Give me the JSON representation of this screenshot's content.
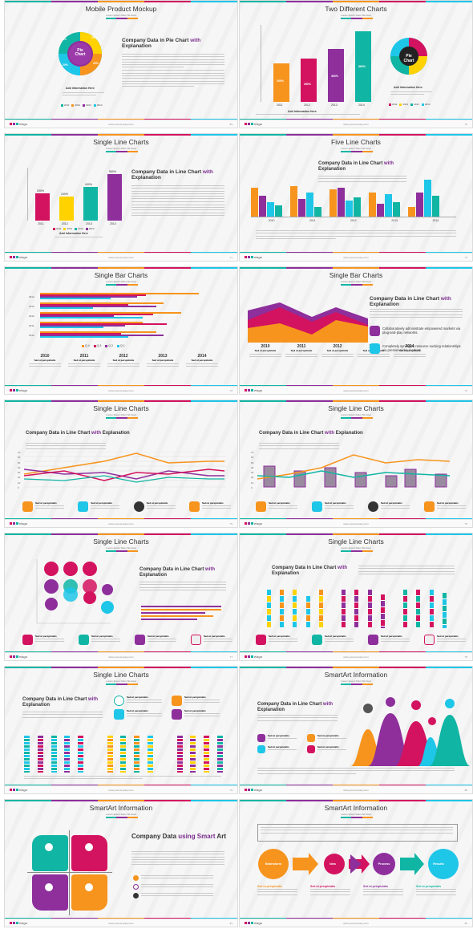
{
  "colors": {
    "teal": "#11b5a4",
    "purple": "#8e2f9c",
    "orange": "#f7941d",
    "magenta": "#d3135f",
    "cyan": "#1ec6e8",
    "yellow": "#ffd200",
    "bg": "#f6f6f6"
  },
  "footer": {
    "logo": "elaga",
    "url": "www.yourcompany.com"
  },
  "slides": [
    {
      "title": "Mobile Product Mockup",
      "subtitle": "Lorem Ipsum Dolor Sit Amet",
      "page": "69",
      "heading_plain": "Company Data in Pie Chart",
      "heading_accent": "with",
      "heading_tail": "Explanation",
      "pie_label": "Pie Chart",
      "pie_pcts": [
        "20%",
        "20%",
        "20%",
        "20%"
      ],
      "caption": "Add Information Here",
      "legend": [
        "2011",
        "2012",
        "2013",
        "2014"
      ]
    },
    {
      "title": "Two Different Charts",
      "subtitle": "Lorem Ipsum Dolor Sit Amet",
      "page": "70",
      "bar_values": [
        "200%",
        "250%",
        "400%",
        "560%"
      ],
      "bar_years": [
        "2011",
        "2012",
        "2013",
        "2014"
      ],
      "pie_label": "Pie Chart",
      "caption": "Add Information Here",
      "legend": [
        "2011",
        "2012",
        "2013",
        "2014"
      ]
    },
    {
      "title": "Single Line Charts",
      "subtitle": "Lorem Ipsum Dolor Sit Amet",
      "page": "71",
      "heading_plain": "Company Data in Line Chart",
      "heading_accent": "with",
      "heading_tail": "Explanation",
      "bar_values": [
        "200%",
        "240%",
        "400%",
        "560%"
      ],
      "bar_years": [
        "2011",
        "2012",
        "2013",
        "2014"
      ],
      "caption": "Add Information Here",
      "legend": [
        "2011",
        "2012",
        "2013",
        "2014"
      ]
    },
    {
      "title": "Five Line Charts",
      "subtitle": "Lorem Ipsum Dolor Sit Amet",
      "page": "72",
      "heading_plain": "Company Data in Line Chart",
      "heading_accent": "with",
      "heading_tail": "Explanation",
      "years": [
        "2010",
        "2011",
        "2012",
        "2013",
        "2014"
      ]
    },
    {
      "title": "Single Bar Charts",
      "subtitle": "Lorem Ipsum Dolor Sit Amet",
      "page": "73",
      "years": [
        "2014",
        "2013",
        "2012",
        "2011",
        "2010"
      ],
      "legend": [
        "Q.4",
        "Q.3",
        "Q.2",
        "Q.1"
      ],
      "cols": [
        "2010",
        "2011",
        "2012",
        "2013",
        "2014"
      ],
      "col_label": "Sed ut perspiciatis"
    },
    {
      "title": "Single Bar Charts",
      "subtitle": "Lorem Ipsum Dolor Sit Amet",
      "page": "74",
      "heading_plain": "Company Data in Line Chart",
      "heading_accent": "with",
      "heading_tail": "Explanation",
      "years": [
        "2010",
        "2011",
        "2012",
        "2013",
        "2014"
      ],
      "col_label": "Sed ut perspiciatis",
      "bullets": [
        "Collaboratively administrate empowered markets via plug-and-play networks.",
        "Completely synergize resource sucking relationships via premier niche markets."
      ]
    },
    {
      "title": "Single Line Charts",
      "subtitle": "Lorem Ipsum Dolor Sit Amet",
      "page": "75",
      "heading_plain": "Company Data in Line Chart",
      "heading_accent": "with",
      "heading_tail": "Explanation",
      "yticks": [
        "70",
        "60",
        "50",
        "40",
        "30",
        "20",
        "10",
        "0"
      ],
      "col_label": "Sed ut perspiciatis"
    },
    {
      "title": "Single Line Charts",
      "subtitle": "Lorem Ipsum Dolor Sit Amet",
      "page": "76",
      "heading_plain": "Company Data in Line Chart",
      "heading_accent": "with",
      "heading_tail": "Explanation",
      "yticks": [
        "70",
        "60",
        "50",
        "40",
        "30",
        "20",
        "10",
        "0"
      ],
      "col_label": "Sed ut perspiciatis"
    },
    {
      "title": "Single Line Charts",
      "subtitle": "Lorem Ipsum Dolor Sit Amet",
      "page": "77",
      "heading_plain": "Company Data in Line Chart",
      "heading_accent": "with",
      "heading_tail": "Explanation",
      "col_label": "Sed ut perspiciatis"
    },
    {
      "title": "Single Line Charts",
      "subtitle": "Lorem Ipsum Dolor Sit Amet",
      "page": "78",
      "heading_plain": "Company Data in Line Chart",
      "heading_accent": "with",
      "heading_tail": "Explanation",
      "col_label": "Sed ut perspiciatis"
    },
    {
      "title": "Single Line Charts",
      "subtitle": "Lorem Ipsum Dolor Sit Amet",
      "page": "79",
      "heading_plain": "Company Data in Line Chart",
      "heading_accent": "with",
      "heading_tail": "Explanation",
      "col_label": "Sed ut perspiciatis"
    },
    {
      "title": "SmartArt Information",
      "subtitle": "Lorem Ipsum Dolor Sit Amet",
      "page": "80",
      "heading_plain": "Company Data in Line Chart",
      "heading_accent": "with",
      "heading_tail": "Explanation",
      "col_label": "Sed ut perspiciatis"
    },
    {
      "title": "SmartArt Information",
      "subtitle": "Lorem Ipsum Dolor Sit Amet",
      "page": "81",
      "heading_plain": "Company Data",
      "heading_accent": "using Smart",
      "heading_tail": "Art"
    },
    {
      "title": "SmartArt Information",
      "subtitle": "Lorem Ipsum Dolor Sit Amet",
      "page": "82",
      "steps": [
        "Brainstorm",
        "Idea",
        "Process",
        "Results"
      ],
      "col_label": "Sed ut perspiciatis"
    }
  ]
}
